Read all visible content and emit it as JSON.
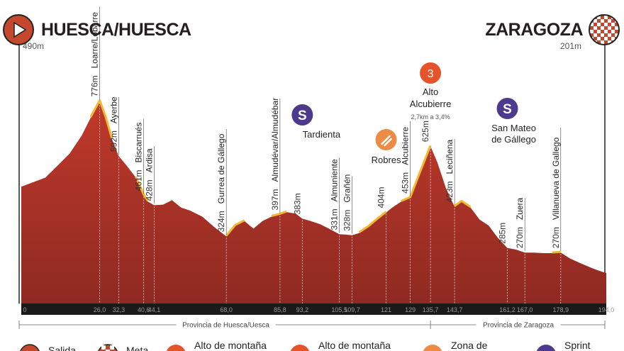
{
  "start": {
    "name": "HUESCA/HUESCA",
    "elevation": "490m",
    "icon": "start-play-icon"
  },
  "finish": {
    "name": "ZARAGOZA",
    "elevation": "201m",
    "icon": "finish-checkered-flag-icon"
  },
  "colors": {
    "profile_fill": "#c0392b",
    "profile_dark": "#8e2a22",
    "climb_highlight": "#f5b731",
    "icon_orange": "#e5532b",
    "icon_purple": "#4d3a8c",
    "icon_feed": "#ec8b45",
    "baseline": "#1a1a1a"
  },
  "chart_data": {
    "type": "area",
    "x_unit": "km",
    "xlim": [
      0,
      194.0
    ],
    "profile": [
      [
        0,
        490
      ],
      [
        4,
        505
      ],
      [
        8,
        520
      ],
      [
        12,
        560
      ],
      [
        16,
        600
      ],
      [
        20,
        660
      ],
      [
        23,
        720
      ],
      [
        26,
        776
      ],
      [
        28,
        720
      ],
      [
        30,
        650
      ],
      [
        32.3,
        592
      ],
      [
        35,
        560
      ],
      [
        38,
        520
      ],
      [
        40.6,
        461
      ],
      [
        42,
        440
      ],
      [
        44.1,
        428
      ],
      [
        47,
        430
      ],
      [
        50,
        445
      ],
      [
        53,
        420
      ],
      [
        56,
        410
      ],
      [
        60,
        390
      ],
      [
        64,
        355
      ],
      [
        68,
        324
      ],
      [
        71,
        360
      ],
      [
        74,
        375
      ],
      [
        77,
        350
      ],
      [
        80,
        375
      ],
      [
        83,
        390
      ],
      [
        85.8,
        397
      ],
      [
        88,
        405
      ],
      [
        91,
        400
      ],
      [
        93.2,
        383
      ],
      [
        96,
        375
      ],
      [
        99,
        365
      ],
      [
        102,
        350
      ],
      [
        105.5,
        331
      ],
      [
        107.5,
        330
      ],
      [
        109.7,
        328
      ],
      [
        112,
        335
      ],
      [
        115,
        355
      ],
      [
        118,
        380
      ],
      [
        121,
        404
      ],
      [
        123,
        420
      ],
      [
        126,
        440
      ],
      [
        129,
        453
      ],
      [
        132,
        530
      ],
      [
        135.7,
        625
      ],
      [
        138,
        570
      ],
      [
        141,
        480
      ],
      [
        143.7,
        423
      ],
      [
        146,
        440
      ],
      [
        149,
        420
      ],
      [
        152,
        380
      ],
      [
        155,
        360
      ],
      [
        158,
        320
      ],
      [
        161.2,
        285
      ],
      [
        164,
        280
      ],
      [
        167,
        270
      ],
      [
        170,
        270
      ],
      [
        173,
        268
      ],
      [
        176,
        268
      ],
      [
        178.9,
        270
      ],
      [
        182,
        250
      ],
      [
        186,
        232
      ],
      [
        190,
        215
      ],
      [
        194,
        201
      ]
    ],
    "ylim": [
      100,
      900
    ],
    "x_ticks": [
      "0",
      "26,0",
      "32,3",
      "40,6",
      "44,1",
      "68,0",
      "85,8",
      "93,2",
      "105,5",
      "109,7",
      "121",
      "129",
      "135,7",
      "143,7",
      "161,2",
      "167,0",
      "178,9",
      "194,0"
    ],
    "x_tick_values": [
      0,
      26.0,
      32.3,
      40.6,
      44.1,
      68.0,
      85.8,
      93.2,
      105.5,
      109.7,
      121,
      129,
      135.7,
      143.7,
      161.2,
      167.0,
      178.9,
      194.0
    ],
    "waypoints": [
      {
        "name": "Loarre/Lobarre",
        "km": 26.0,
        "elev": "776m"
      },
      {
        "name": "Ayerbe",
        "km": 32.3,
        "elev": "592m"
      },
      {
        "name": "Biscarrués",
        "km": 40.6,
        "elev": "461m"
      },
      {
        "name": "Ardisa",
        "km": 44.1,
        "elev": "428m"
      },
      {
        "name": "Gurrea de Gállego",
        "km": 68.0,
        "elev": "324m"
      },
      {
        "name": "Almudévar/Almudébar",
        "km": 85.8,
        "elev": "397m"
      },
      {
        "name": "",
        "km": 93.2,
        "elev": "383m"
      },
      {
        "name": "Almuniente",
        "km": 105.5,
        "elev": "331m"
      },
      {
        "name": "Grañén",
        "km": 109.7,
        "elev": "328m"
      },
      {
        "name": "",
        "km": 121,
        "elev": "404m"
      },
      {
        "name": "Alcubierre",
        "km": 129,
        "elev": "453m"
      },
      {
        "name": "",
        "km": 135.7,
        "elev": "625m"
      },
      {
        "name": "Leciñena",
        "km": 143.7,
        "elev": "423m"
      },
      {
        "name": "",
        "km": 161.2,
        "elev": "285m"
      },
      {
        "name": "Zuera",
        "km": 167.0,
        "elev": "270m"
      },
      {
        "name": "Villanueva de Gallego",
        "km": 178.9,
        "elev": "270m"
      }
    ],
    "markers": [
      {
        "type": "sprint",
        "label": "Tardienta",
        "km": 93.2,
        "badge": "S"
      },
      {
        "type": "feed",
        "label": "Robres",
        "km": 121,
        "badge": ""
      },
      {
        "type": "mountain",
        "label_line1": "Alto",
        "label_line2": "Alcubierre",
        "detail": "2,7km a 3,4%",
        "km": 135.7,
        "badge": "3"
      },
      {
        "type": "sprint",
        "label_line1": "San Mateo",
        "label_line2": "de Gállego",
        "km": 161.2,
        "badge": "S"
      }
    ],
    "provinces": [
      {
        "name": "Provincia de Huesca/Uesca",
        "from_km": 0,
        "to_km": 135.7
      },
      {
        "name": "Provincia de Zaragoza",
        "from_km": 135.7,
        "to_km": 194.0
      }
    ]
  },
  "legend": [
    {
      "icon": "start-icon",
      "label": "Salida"
    },
    {
      "icon": "finish-icon",
      "label": "Meta"
    },
    {
      "icon": "mountain-1-icon",
      "label": "Alto de montaña"
    },
    {
      "icon": "mountain-2-icon",
      "label": "Alto de montaña"
    },
    {
      "icon": "feed-zone-icon",
      "label": "Zona de"
    },
    {
      "icon": "sprint-icon",
      "label": "Sprint"
    }
  ]
}
